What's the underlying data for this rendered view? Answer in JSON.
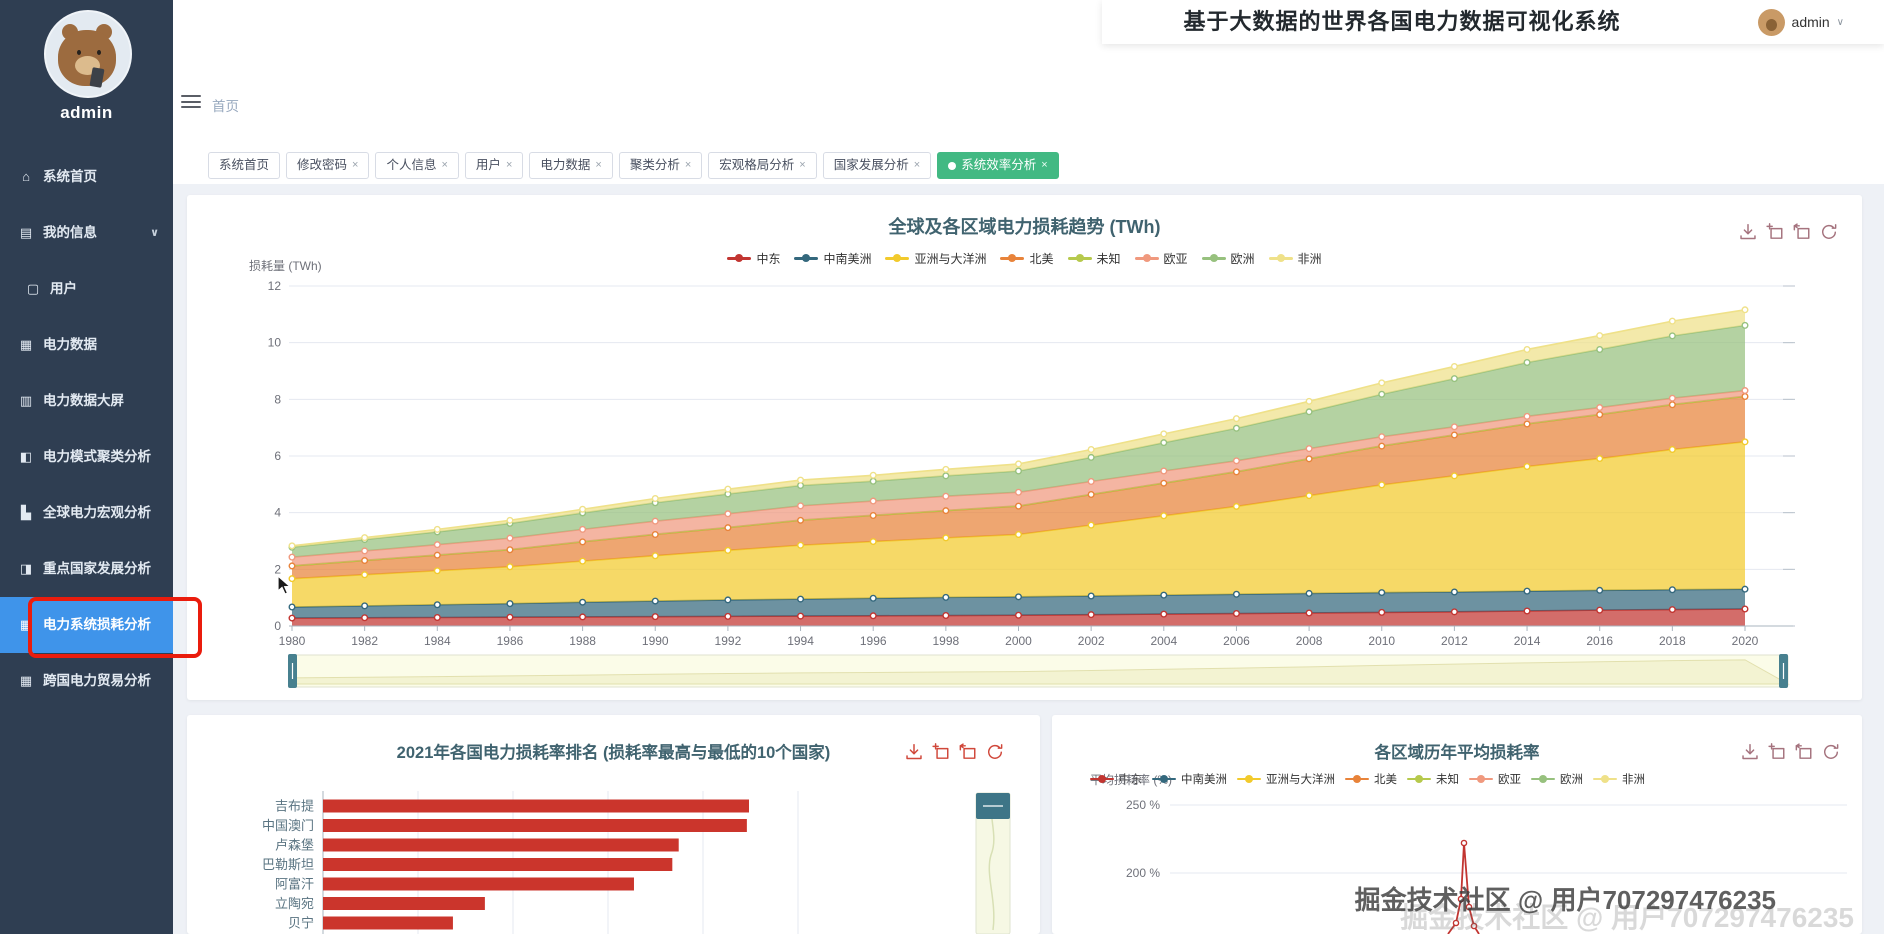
{
  "header": {
    "title": "基于大数据的世界各国电力数据可视化系统",
    "user": "admin"
  },
  "breadcrumb": {
    "home": "首页"
  },
  "sidebar": {
    "username": "admin",
    "items": [
      {
        "slug": "home",
        "icon": "home-icon",
        "glyph": "⌂",
        "label": "系统首页"
      },
      {
        "slug": "my-info",
        "icon": "folder-icon",
        "glyph": "▤",
        "label": "我的信息",
        "has_arrow": true
      },
      {
        "slug": "users",
        "icon": "monitor-icon",
        "glyph": "▢",
        "label": "用户",
        "child": true
      },
      {
        "slug": "power-data",
        "icon": "grid-icon",
        "glyph": "▦",
        "label": "电力数据"
      },
      {
        "slug": "power-data-screen",
        "icon": "clipboard-icon",
        "glyph": "▥",
        "label": "电力数据大屏"
      },
      {
        "slug": "cluster-analysis",
        "icon": "chart-icon",
        "glyph": "◧",
        "label": "电力模式聚类分析"
      },
      {
        "slug": "macro-analysis",
        "icon": "bars-icon",
        "glyph": "▙",
        "label": "全球电力宏观分析"
      },
      {
        "slug": "key-country-analysis",
        "icon": "briefcase-icon",
        "glyph": "◨",
        "label": "重点国家发展分析"
      },
      {
        "slug": "loss-analysis",
        "icon": "grid-icon",
        "glyph": "▦",
        "label": "电力系统损耗分析",
        "active": true,
        "annotated": true
      },
      {
        "slug": "trade-analysis",
        "icon": "grid-icon",
        "glyph": "▦",
        "label": "跨国电力贸易分析"
      }
    ]
  },
  "tabs": [
    {
      "label": "系统首页",
      "closable": false
    },
    {
      "label": "修改密码",
      "closable": true
    },
    {
      "label": "个人信息",
      "closable": true
    },
    {
      "label": "用户",
      "closable": true
    },
    {
      "label": "电力数据",
      "closable": true
    },
    {
      "label": "聚类分析",
      "closable": true
    },
    {
      "label": "宏观格局分析",
      "closable": true
    },
    {
      "label": "国家发展分析",
      "closable": true
    },
    {
      "label": "系统效率分析",
      "closable": true,
      "active": true
    }
  ],
  "toolbox_icons": [
    "save-image",
    "data-zoom",
    "zoom-restore",
    "refresh"
  ],
  "chart_data": [
    {
      "id": "loss-trend",
      "type": "area",
      "stacked": true,
      "title": "全球及各区域电力损耗趋势 (TWh)",
      "ylabel": "损耗量 (TWh)",
      "ylim": [
        0,
        12
      ],
      "yticks": [
        0,
        2,
        4,
        6,
        8,
        10,
        12
      ],
      "x": [
        1980,
        1982,
        1984,
        1986,
        1988,
        1990,
        1992,
        1994,
        1996,
        1998,
        2000,
        2002,
        2004,
        2006,
        2008,
        2010,
        2012,
        2014,
        2016,
        2018,
        2020
      ],
      "grid": true,
      "legend_position": "top",
      "data_zoom_slider": true,
      "series": [
        {
          "name": "中东",
          "color": "#c23531",
          "values": [
            0.28,
            0.29,
            0.3,
            0.31,
            0.32,
            0.33,
            0.34,
            0.35,
            0.36,
            0.37,
            0.38,
            0.4,
            0.42,
            0.44,
            0.46,
            0.48,
            0.5,
            0.53,
            0.56,
            0.58,
            0.6
          ]
        },
        {
          "name": "中南美洲",
          "color": "#34687d",
          "values": [
            0.39,
            0.42,
            0.45,
            0.48,
            0.52,
            0.55,
            0.58,
            0.6,
            0.62,
            0.64,
            0.65,
            0.66,
            0.67,
            0.68,
            0.69,
            0.7,
            0.7,
            0.7,
            0.7,
            0.7,
            0.7
          ]
        },
        {
          "name": "亚洲与大洋洲",
          "color": "#f2ca2c",
          "values": [
            1.0,
            1.1,
            1.2,
            1.3,
            1.45,
            1.6,
            1.75,
            1.9,
            2.0,
            2.1,
            2.2,
            2.5,
            2.8,
            3.1,
            3.45,
            3.8,
            4.1,
            4.4,
            4.65,
            4.95,
            5.2
          ]
        },
        {
          "name": "北美",
          "color": "#e8833a",
          "values": [
            0.45,
            0.5,
            0.55,
            0.6,
            0.68,
            0.75,
            0.8,
            0.88,
            0.92,
            0.96,
            1.0,
            1.08,
            1.15,
            1.22,
            1.3,
            1.37,
            1.44,
            1.5,
            1.55,
            1.58,
            1.6
          ]
        },
        {
          "name": "未知",
          "color": "#b6c94c",
          "values": [
            0.01,
            0.01,
            0.01,
            0.01,
            0.01,
            0.01,
            0.01,
            0.01,
            0.01,
            0.01,
            0.01,
            0.01,
            0.01,
            0.01,
            0.01,
            0.01,
            0.01,
            0.01,
            0.01,
            0.01,
            0.01
          ]
        },
        {
          "name": "欧亚",
          "color": "#f0997e",
          "values": [
            0.3,
            0.33,
            0.36,
            0.4,
            0.43,
            0.46,
            0.48,
            0.5,
            0.5,
            0.5,
            0.48,
            0.45,
            0.42,
            0.38,
            0.35,
            0.32,
            0.28,
            0.26,
            0.24,
            0.22,
            0.2
          ]
        },
        {
          "name": "欧洲",
          "color": "#97c17e",
          "values": [
            0.35,
            0.4,
            0.45,
            0.52,
            0.58,
            0.65,
            0.7,
            0.72,
            0.7,
            0.72,
            0.75,
            0.85,
            1.0,
            1.15,
            1.3,
            1.5,
            1.7,
            1.9,
            2.05,
            2.2,
            2.3
          ]
        },
        {
          "name": "非洲",
          "color": "#efe189",
          "values": [
            0.05,
            0.07,
            0.09,
            0.11,
            0.13,
            0.15,
            0.17,
            0.19,
            0.21,
            0.23,
            0.25,
            0.28,
            0.31,
            0.34,
            0.37,
            0.4,
            0.43,
            0.46,
            0.49,
            0.52,
            0.55
          ]
        }
      ]
    },
    {
      "id": "loss-rank",
      "type": "bar",
      "orientation": "horizontal",
      "title": "2021年各国电力损耗率排名 (损耗率最高与最低的10个国家)",
      "categories": [
        "吉布提",
        "中国澳门",
        "卢森堡",
        "巴勒斯坦",
        "阿富汗",
        "立陶宛",
        "贝宁"
      ],
      "values_percent_of_max": [
        100,
        99.5,
        83.5,
        82,
        73,
        38,
        30.5
      ],
      "bar_color": "#cb352c",
      "grid": true,
      "data_zoom_slider_vertical": true,
      "partially_visible": true
    },
    {
      "id": "avg-loss-rate",
      "type": "line",
      "title": "各区域历年平均损耗率",
      "ylabel": "平均损耗率 (%)",
      "yticks_visible": [
        "250 %",
        "200 %"
      ],
      "legend": [
        "中东",
        "中南美洲",
        "亚洲与大洋洲",
        "北美",
        "未知",
        "欧亚",
        "欧洲",
        "非洲"
      ],
      "legend_colors": [
        "#c23531",
        "#34687d",
        "#f2ca2c",
        "#e8833a",
        "#b6c94c",
        "#f0997e",
        "#97c17e",
        "#efe189"
      ],
      "visible_series": [
        {
          "name": "中东",
          "color": "#c23531",
          "peak_value_percent": 222
        }
      ],
      "partially_visible": true
    }
  ],
  "watermark": {
    "text": "掘金技术社区 @ 用户707297476235"
  }
}
